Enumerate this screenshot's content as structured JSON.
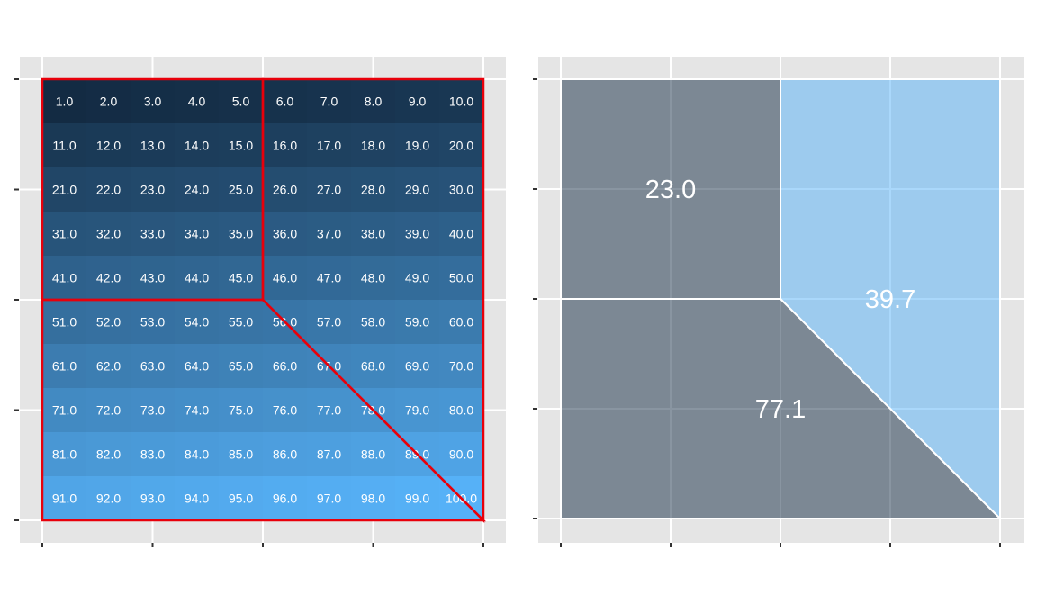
{
  "chart_data": [
    {
      "type": "heatmap",
      "title": "",
      "xlabel": "",
      "ylabel": "",
      "grid": true,
      "x_tick_labels": [],
      "y_tick_labels": [],
      "rows": 10,
      "cols": 10,
      "values": [
        [
          1.0,
          2.0,
          3.0,
          4.0,
          5.0,
          6.0,
          7.0,
          8.0,
          9.0,
          10.0
        ],
        [
          11.0,
          12.0,
          13.0,
          14.0,
          15.0,
          16.0,
          17.0,
          18.0,
          19.0,
          20.0
        ],
        [
          21.0,
          22.0,
          23.0,
          24.0,
          25.0,
          26.0,
          27.0,
          28.0,
          29.0,
          30.0
        ],
        [
          31.0,
          32.0,
          33.0,
          34.0,
          35.0,
          36.0,
          37.0,
          38.0,
          39.0,
          40.0
        ],
        [
          41.0,
          42.0,
          43.0,
          44.0,
          45.0,
          46.0,
          47.0,
          48.0,
          49.0,
          50.0
        ],
        [
          51.0,
          52.0,
          53.0,
          54.0,
          55.0,
          56.0,
          57.0,
          58.0,
          59.0,
          60.0
        ],
        [
          61.0,
          62.0,
          63.0,
          64.0,
          65.0,
          66.0,
          67.0,
          68.0,
          69.0,
          70.0
        ],
        [
          71.0,
          72.0,
          73.0,
          74.0,
          75.0,
          76.0,
          77.0,
          78.0,
          79.0,
          80.0
        ],
        [
          81.0,
          82.0,
          83.0,
          84.0,
          85.0,
          86.0,
          87.0,
          88.0,
          89.0,
          90.0
        ],
        [
          91.0,
          92.0,
          93.0,
          94.0,
          95.0,
          96.0,
          97.0,
          98.0,
          99.0,
          100.0
        ]
      ],
      "color_low": "#132B43",
      "color_high": "#56B1F7",
      "overlay_color": "#E8000B",
      "overlay_regions": [
        [
          [
            0,
            0
          ],
          [
            5,
            0
          ],
          [
            5,
            5
          ],
          [
            0,
            5
          ]
        ],
        [
          [
            5,
            0
          ],
          [
            10,
            0
          ],
          [
            10,
            10
          ],
          [
            5,
            5
          ]
        ],
        [
          [
            0,
            5
          ],
          [
            5,
            5
          ],
          [
            10,
            10
          ],
          [
            0,
            10
          ]
        ]
      ]
    },
    {
      "type": "area",
      "title": "",
      "xlabel": "",
      "ylabel": "",
      "grid": true,
      "x_tick_labels": [],
      "y_tick_labels": [],
      "regions": [
        {
          "label": "23.0",
          "value": 23.0,
          "color": "#132B43",
          "polygon": [
            [
              0,
              0
            ],
            [
              5,
              0
            ],
            [
              5,
              5
            ],
            [
              0,
              5
            ]
          ],
          "label_at": [
            2.5,
            2.5
          ]
        },
        {
          "label": "39.7",
          "value": 39.7,
          "color": "#56B1F7",
          "polygon": [
            [
              5,
              0
            ],
            [
              10,
              0
            ],
            [
              10,
              10
            ],
            [
              5,
              5
            ]
          ],
          "label_at": [
            7.5,
            5.0
          ]
        },
        {
          "label": "77.1",
          "value": 77.1,
          "color": "#132B43",
          "polygon": [
            [
              0,
              5
            ],
            [
              5,
              5
            ],
            [
              10,
              10
            ],
            [
              0,
              10
            ]
          ],
          "label_at": [
            5.0,
            7.5
          ]
        }
      ]
    }
  ]
}
